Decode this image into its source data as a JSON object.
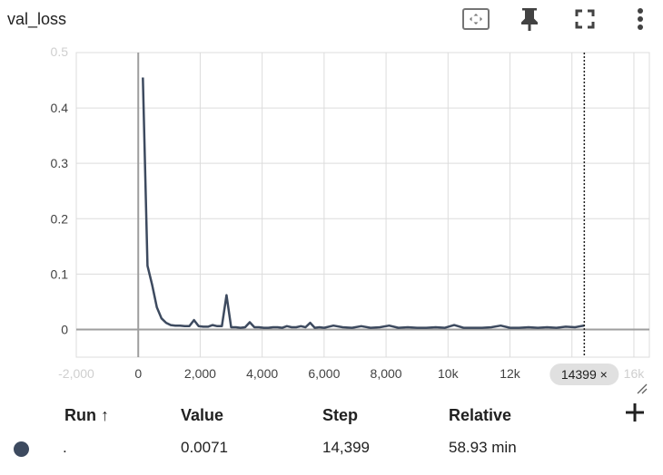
{
  "card": {
    "title": "val_loss"
  },
  "toolbar": {
    "icons": [
      "fit-domain-icon",
      "pin-icon",
      "fullscreen-icon",
      "more-vert-icon"
    ]
  },
  "chart_data": {
    "type": "line",
    "title": "val_loss",
    "xlabel": "",
    "ylabel": "",
    "xlim": [
      -2000,
      16500
    ],
    "ylim": [
      -0.05,
      0.5
    ],
    "y_ticks": [
      0,
      0.1,
      0.2,
      0.3,
      0.4
    ],
    "y_tick_labels": [
      "0",
      "0.1",
      "0.2",
      "0.3",
      "0.4"
    ],
    "y_top_partial_label": "0.5",
    "x_ticks": [
      -2000,
      0,
      2000,
      4000,
      6000,
      8000,
      10000,
      12000
    ],
    "x_tick_labels": [
      "-2,000",
      "0",
      "2,000",
      "4,000",
      "6,000",
      "8,000",
      "10k",
      "12k"
    ],
    "x_right_partial_label": "16k",
    "grid": true,
    "hover_step": 14399,
    "hover_label": "14399 ×",
    "series": [
      {
        "name": ".",
        "color": "#3d4a5f",
        "x": [
          150,
          300,
          450,
          600,
          750,
          900,
          1050,
          1200,
          1350,
          1500,
          1650,
          1800,
          1950,
          2100,
          2250,
          2400,
          2550,
          2700,
          2850,
          3000,
          3150,
          3300,
          3450,
          3600,
          3750,
          3900,
          4050,
          4200,
          4350,
          4500,
          4650,
          4800,
          4950,
          5100,
          5250,
          5400,
          5550,
          5700,
          5850,
          6000,
          6300,
          6600,
          6900,
          7200,
          7500,
          7800,
          8100,
          8400,
          8700,
          9000,
          9300,
          9600,
          9900,
          10200,
          10500,
          10800,
          11100,
          11400,
          11700,
          12000,
          12300,
          12600,
          12900,
          13200,
          13500,
          13800,
          14100,
          14399
        ],
        "y": [
          0.455,
          0.115,
          0.08,
          0.04,
          0.02,
          0.012,
          0.008,
          0.007,
          0.007,
          0.006,
          0.006,
          0.017,
          0.006,
          0.005,
          0.005,
          0.008,
          0.006,
          0.006,
          0.062,
          0.004,
          0.004,
          0.003,
          0.004,
          0.013,
          0.004,
          0.004,
          0.003,
          0.003,
          0.004,
          0.004,
          0.003,
          0.006,
          0.004,
          0.004,
          0.006,
          0.004,
          0.012,
          0.003,
          0.004,
          0.003,
          0.007,
          0.004,
          0.003,
          0.006,
          0.003,
          0.004,
          0.007,
          0.003,
          0.004,
          0.003,
          0.003,
          0.004,
          0.003,
          0.008,
          0.003,
          0.003,
          0.003,
          0.004,
          0.007,
          0.003,
          0.003,
          0.004,
          0.003,
          0.004,
          0.003,
          0.005,
          0.004,
          0.0071
        ]
      }
    ]
  },
  "table": {
    "headers": {
      "run": "Run ↑",
      "value": "Value",
      "step": "Step",
      "relative": "Relative"
    },
    "rows": [
      {
        "run": ".",
        "value": "0.0071",
        "step": "14,399",
        "relative": "58.93 min",
        "color": "#3d4a5f"
      }
    ]
  }
}
